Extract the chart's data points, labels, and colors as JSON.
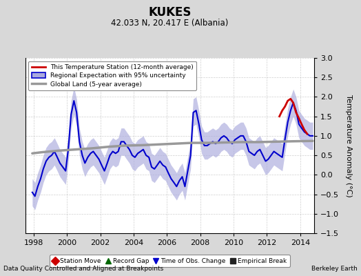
{
  "title": "KUKES",
  "subtitle": "42.033 N, 20.417 E (Albania)",
  "ylabel": "Temperature Anomaly (°C)",
  "xlabel_note": "Data Quality Controlled and Aligned at Breakpoints",
  "credit": "Berkeley Earth",
  "xlim": [
    1997.5,
    2014.83
  ],
  "ylim": [
    -1.5,
    3.0
  ],
  "yticks": [
    -1.5,
    -1.0,
    -0.5,
    0.0,
    0.5,
    1.0,
    1.5,
    2.0,
    2.5,
    3.0
  ],
  "xticks": [
    1998,
    2000,
    2002,
    2004,
    2006,
    2008,
    2010,
    2012,
    2014
  ],
  "bg_color": "#d8d8d8",
  "plot_bg_color": "#ffffff",
  "regional_color": "#0000cc",
  "regional_fill_color": "#aaaadd",
  "station_color": "#cc0000",
  "global_color": "#999999",
  "global_lw": 2.5,
  "regional_lw": 1.5,
  "station_lw": 2.0,
  "years": [
    1997.92,
    1998.08,
    1998.25,
    1998.42,
    1998.58,
    1998.75,
    1998.92,
    1999.08,
    1999.25,
    1999.42,
    1999.58,
    1999.75,
    1999.92,
    2000.08,
    2000.25,
    2000.42,
    2000.58,
    2000.75,
    2000.92,
    2001.08,
    2001.25,
    2001.42,
    2001.58,
    2001.75,
    2001.92,
    2002.08,
    2002.25,
    2002.42,
    2002.58,
    2002.75,
    2002.92,
    2003.08,
    2003.25,
    2003.42,
    2003.58,
    2003.75,
    2003.92,
    2004.08,
    2004.25,
    2004.42,
    2004.58,
    2004.75,
    2004.92,
    2005.08,
    2005.25,
    2005.42,
    2005.58,
    2005.75,
    2005.92,
    2006.08,
    2006.25,
    2006.42,
    2006.58,
    2006.75,
    2006.92,
    2007.08,
    2007.25,
    2007.42,
    2007.58,
    2007.75,
    2007.92,
    2008.08,
    2008.25,
    2008.42,
    2008.58,
    2008.75,
    2008.92,
    2009.08,
    2009.25,
    2009.42,
    2009.58,
    2009.75,
    2009.92,
    2010.08,
    2010.25,
    2010.42,
    2010.58,
    2010.75,
    2010.92,
    2011.08,
    2011.25,
    2011.42,
    2011.58,
    2011.75,
    2011.92,
    2012.08,
    2012.25,
    2012.42,
    2012.58,
    2012.75,
    2012.92,
    2013.08,
    2013.25,
    2013.42,
    2013.58,
    2013.75,
    2013.92,
    2014.08,
    2014.25,
    2014.42,
    2014.58,
    2014.75
  ],
  "regional": [
    -0.45,
    -0.55,
    -0.3,
    -0.1,
    0.15,
    0.35,
    0.45,
    0.5,
    0.6,
    0.45,
    0.3,
    0.2,
    0.1,
    0.65,
    1.55,
    1.9,
    1.6,
    0.85,
    0.5,
    0.3,
    0.45,
    0.55,
    0.6,
    0.5,
    0.4,
    0.25,
    0.1,
    0.3,
    0.5,
    0.6,
    0.55,
    0.6,
    0.85,
    0.85,
    0.75,
    0.65,
    0.5,
    0.45,
    0.55,
    0.6,
    0.65,
    0.5,
    0.45,
    0.2,
    0.15,
    0.25,
    0.35,
    0.25,
    0.2,
    0.05,
    -0.1,
    -0.2,
    -0.3,
    -0.15,
    -0.05,
    -0.3,
    0.1,
    0.5,
    1.6,
    1.65,
    1.3,
    0.9,
    0.75,
    0.75,
    0.8,
    0.85,
    0.8,
    0.85,
    0.95,
    1.0,
    0.95,
    0.85,
    0.8,
    0.9,
    0.95,
    1.0,
    1.0,
    0.85,
    0.6,
    0.55,
    0.5,
    0.6,
    0.65,
    0.5,
    0.35,
    0.4,
    0.5,
    0.6,
    0.55,
    0.5,
    0.45,
    0.9,
    1.35,
    1.65,
    1.85,
    1.65,
    1.3,
    1.2,
    1.1,
    1.05,
    1.0,
    1.0
  ],
  "regional_upper": [
    -0.1,
    -0.2,
    0.05,
    0.25,
    0.5,
    0.7,
    0.8,
    0.85,
    0.95,
    0.8,
    0.65,
    0.55,
    0.45,
    1.0,
    1.9,
    2.25,
    1.95,
    1.2,
    0.85,
    0.65,
    0.8,
    0.9,
    0.95,
    0.85,
    0.75,
    0.6,
    0.45,
    0.65,
    0.85,
    0.95,
    0.9,
    0.95,
    1.2,
    1.2,
    1.1,
    1.0,
    0.85,
    0.8,
    0.9,
    0.95,
    1.0,
    0.85,
    0.8,
    0.55,
    0.5,
    0.6,
    0.7,
    0.6,
    0.55,
    0.4,
    0.25,
    0.15,
    0.05,
    0.2,
    0.3,
    0.05,
    0.45,
    0.85,
    1.95,
    2.0,
    1.65,
    1.25,
    1.1,
    1.1,
    1.15,
    1.2,
    1.15,
    1.2,
    1.3,
    1.35,
    1.3,
    1.2,
    1.15,
    1.25,
    1.3,
    1.35,
    1.35,
    1.2,
    0.95,
    0.9,
    0.85,
    0.95,
    1.0,
    0.85,
    0.7,
    0.75,
    0.85,
    0.95,
    0.9,
    0.85,
    0.8,
    1.25,
    1.7,
    2.0,
    2.2,
    2.0,
    1.65,
    1.55,
    1.45,
    1.4,
    1.35,
    1.35
  ],
  "regional_lower": [
    -0.8,
    -0.9,
    -0.65,
    -0.45,
    -0.2,
    0.0,
    0.1,
    0.15,
    0.25,
    0.1,
    -0.05,
    -0.15,
    -0.25,
    0.3,
    1.2,
    1.55,
    1.25,
    0.5,
    0.15,
    -0.05,
    0.1,
    0.2,
    0.25,
    0.15,
    0.05,
    -0.1,
    -0.25,
    -0.05,
    0.15,
    0.25,
    0.2,
    0.25,
    0.5,
    0.5,
    0.4,
    0.3,
    0.15,
    0.1,
    0.2,
    0.25,
    0.3,
    0.15,
    0.1,
    -0.15,
    -0.2,
    -0.1,
    0.0,
    -0.1,
    -0.15,
    -0.3,
    -0.45,
    -0.55,
    -0.65,
    -0.5,
    -0.4,
    -0.65,
    -0.25,
    0.15,
    1.25,
    1.3,
    0.95,
    0.55,
    0.4,
    0.4,
    0.45,
    0.5,
    0.45,
    0.5,
    0.6,
    0.65,
    0.6,
    0.5,
    0.45,
    0.55,
    0.6,
    0.65,
    0.65,
    0.5,
    0.25,
    0.2,
    0.15,
    0.25,
    0.3,
    0.15,
    0.0,
    0.05,
    0.15,
    0.25,
    0.2,
    0.15,
    0.1,
    0.55,
    1.0,
    1.3,
    1.5,
    1.3,
    0.95,
    0.85,
    0.75,
    0.7,
    0.65,
    0.65
  ],
  "global_years": [
    1997.92,
    1998.5,
    1999.5,
    2000.5,
    2001.5,
    2002.5,
    2003.5,
    2004.5,
    2005.5,
    2006.5,
    2007.5,
    2008.5,
    2009.5,
    2010.5,
    2011.5,
    2012.5,
    2013.5,
    2014.75
  ],
  "global_vals": [
    0.55,
    0.58,
    0.62,
    0.65,
    0.68,
    0.72,
    0.75,
    0.76,
    0.78,
    0.8,
    0.82,
    0.82,
    0.83,
    0.84,
    0.84,
    0.85,
    0.86,
    0.87
  ],
  "station_years": [
    2012.75,
    2012.92,
    2013.08,
    2013.25,
    2013.42,
    2013.58,
    2013.75,
    2013.92,
    2014.08,
    2014.25,
    2014.42
  ],
  "station_vals": [
    1.5,
    1.65,
    1.75,
    1.9,
    1.95,
    1.85,
    1.6,
    1.45,
    1.3,
    1.15,
    1.05
  ],
  "legend1_items": [
    {
      "label": "This Temperature Station (12-month average)",
      "color": "#cc0000",
      "lw": 2.0,
      "fill": false
    },
    {
      "label": "Regional Expectation with 95% uncertainty",
      "color": "#0000cc",
      "lw": 1.5,
      "fill": true
    },
    {
      "label": "Global Land (5-year average)",
      "color": "#999999",
      "lw": 2.5,
      "fill": false
    }
  ],
  "legend2_items": [
    {
      "label": "Station Move",
      "marker": "D",
      "color": "#cc0000"
    },
    {
      "label": "Record Gap",
      "marker": "^",
      "color": "#006600"
    },
    {
      "label": "Time of Obs. Change",
      "marker": "v",
      "color": "#0000cc"
    },
    {
      "label": "Empirical Break",
      "marker": "s",
      "color": "#222222"
    }
  ]
}
